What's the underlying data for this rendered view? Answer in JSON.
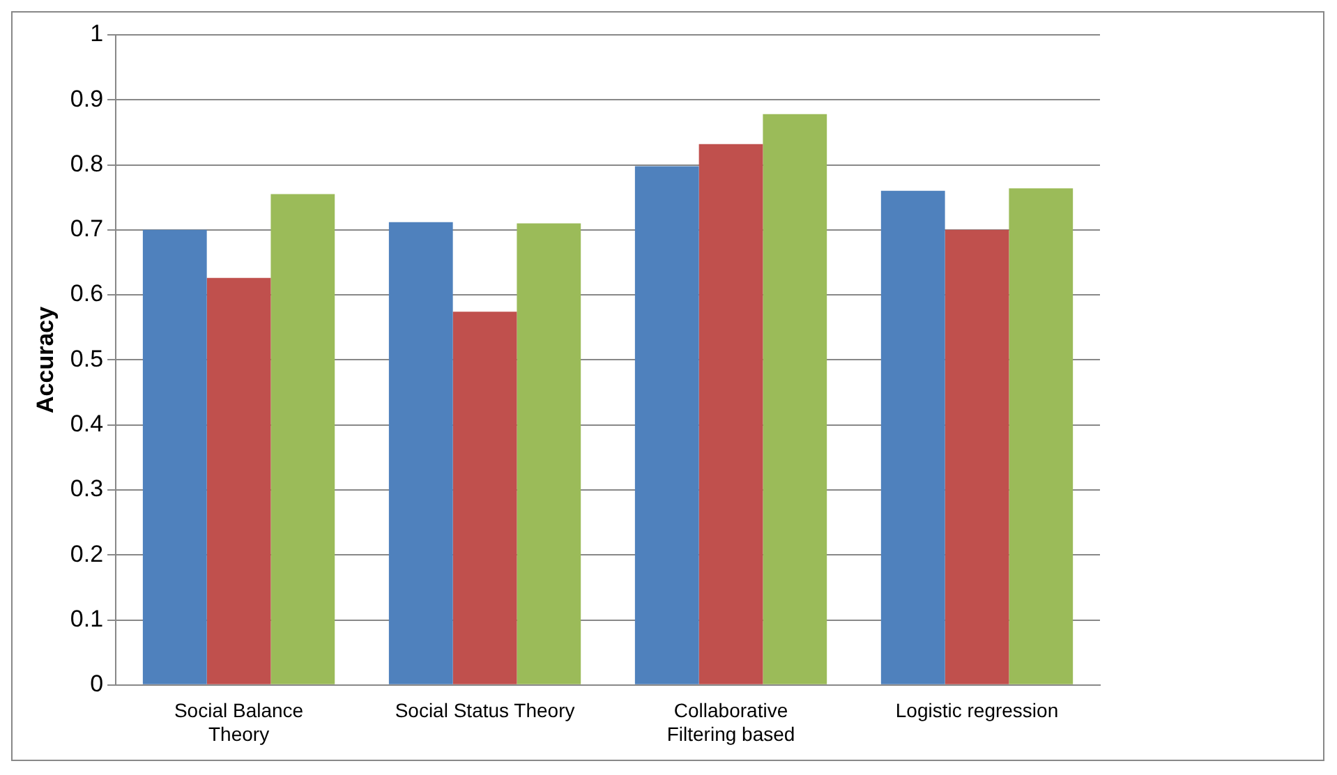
{
  "chart_data": {
    "type": "bar",
    "ylabel": "Accuracy",
    "categories": [
      "Social Balance Theory",
      "Social Status Theory",
      "Collaborative Filtering based",
      "Logistic regression"
    ],
    "series": [
      {
        "color": "#4f81bd",
        "values": [
          0.7,
          0.712,
          0.798,
          0.76
        ]
      },
      {
        "color": "#c0504d",
        "values": [
          0.626,
          0.574,
          0.832,
          0.7
        ]
      },
      {
        "color": "#9bbb59",
        "values": [
          0.755,
          0.71,
          0.878,
          0.764
        ]
      }
    ],
    "ylim": [
      0,
      1
    ],
    "yticks": [
      0,
      0.1,
      0.2,
      0.3,
      0.4,
      0.5,
      0.6,
      0.7,
      0.8,
      0.9,
      1
    ],
    "grid": "y"
  }
}
